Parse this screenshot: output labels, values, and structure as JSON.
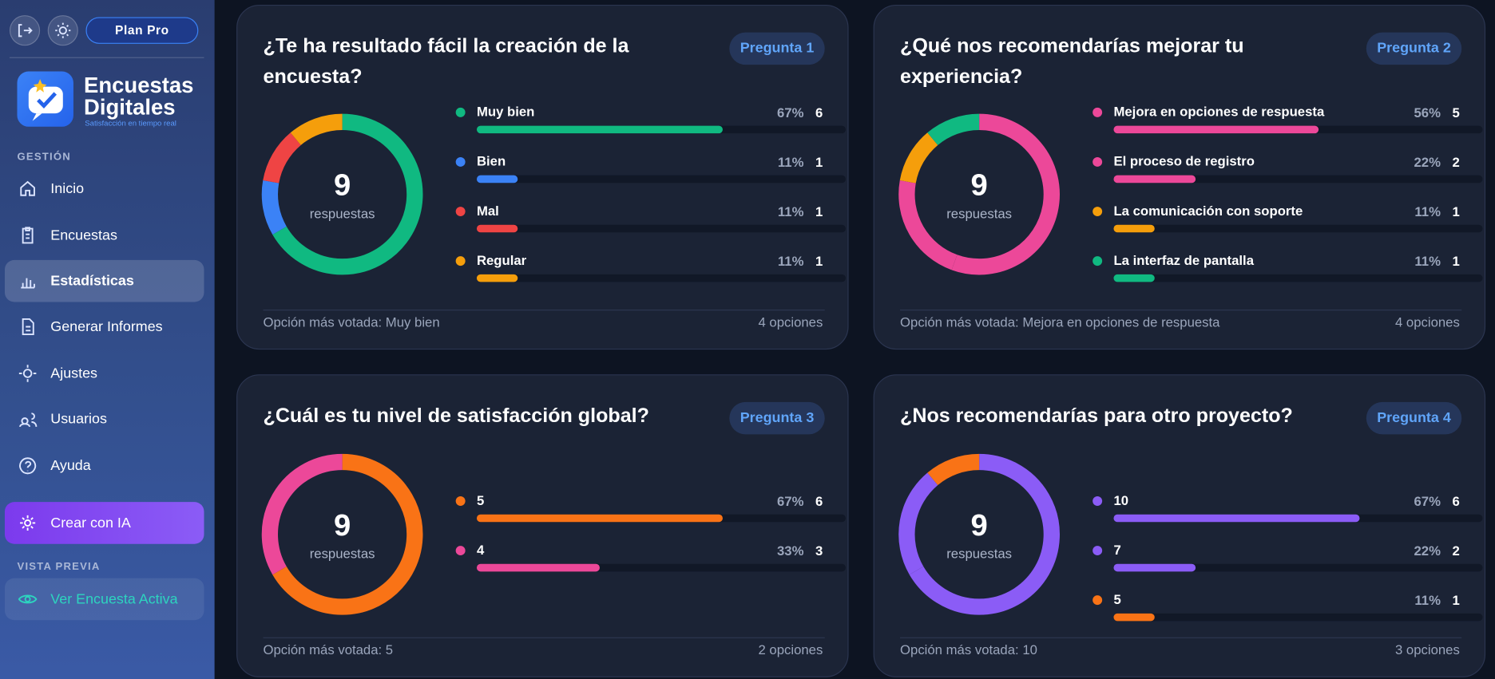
{
  "sidebar": {
    "plan": "Plan Pro",
    "brand_line1": "Encuestas",
    "brand_line2": "Digitales",
    "tagline": "Satisfacción en tiempo real",
    "section1": "GESTIÓN",
    "nav": [
      "Inicio",
      "Encuestas",
      "Estadísticas",
      "Generar Informes",
      "Ajustes",
      "Usuarios",
      "Ayuda"
    ],
    "cta": "Crear con IA",
    "section2": "VISTA PREVIA",
    "preview": "Ver Encuesta Activa"
  },
  "questions": [
    {
      "title": "¿Te ha resultado fácil la creación de la encuesta?",
      "badge": "Pregunta 1",
      "total": 9,
      "total_label": "respuestas",
      "options": [
        {
          "label": "Muy bien",
          "color": "#10b981",
          "percent": "67%",
          "count": 6
        },
        {
          "label": "Bien",
          "color": "#3b82f6",
          "percent": "11%",
          "count": 1
        },
        {
          "label": "Mal",
          "color": "#ef4444",
          "percent": "11%",
          "count": 1
        },
        {
          "label": "Regular",
          "color": "#f59e0b",
          "percent": "11%",
          "count": 1
        }
      ],
      "footer_left": "Opción más votada: Muy bien",
      "footer_right": "4 opciones"
    },
    {
      "title": "¿Qué nos recomendarías mejorar tu experiencia?",
      "badge": "Pregunta 2",
      "total": 9,
      "total_label": "respuestas",
      "options": [
        {
          "label": "Mejora en opciones de respuesta",
          "color": "#ec4899",
          "percent": "56%",
          "count": 5
        },
        {
          "label": "El proceso de registro",
          "color": "#ec4899",
          "percent": "22%",
          "count": 2
        },
        {
          "label": "La comunicación con soporte",
          "color": "#f59e0b",
          "percent": "11%",
          "count": 1
        },
        {
          "label": "La interfaz de pantalla",
          "color": "#10b981",
          "percent": "11%",
          "count": 1
        }
      ],
      "footer_left": "Opción más votada: Mejora en opciones de respuesta",
      "footer_right": "4 opciones"
    },
    {
      "title": "¿Cuál es tu nivel de satisfacción global?",
      "badge": "Pregunta 3",
      "total": 9,
      "total_label": "respuestas",
      "options": [
        {
          "label": "5",
          "color": "#f97316",
          "percent": "67%",
          "count": 6
        },
        {
          "label": "4",
          "color": "#ec4899",
          "percent": "33%",
          "count": 3
        }
      ],
      "footer_left": "Opción más votada: 5",
      "footer_right": "2 opciones"
    },
    {
      "title": "¿Nos recomendarías para otro proyecto?",
      "badge": "Pregunta 4",
      "total": 9,
      "total_label": "respuestas",
      "options": [
        {
          "label": "10",
          "color": "#8b5cf6",
          "percent": "67%",
          "count": 6
        },
        {
          "label": "7",
          "color": "#8b5cf6",
          "percent": "22%",
          "count": 2
        },
        {
          "label": "5",
          "color": "#f97316",
          "percent": "11%",
          "count": 1
        }
      ],
      "footer_left": "Opción más votada: 10",
      "footer_right": "3 opciones"
    }
  ]
}
